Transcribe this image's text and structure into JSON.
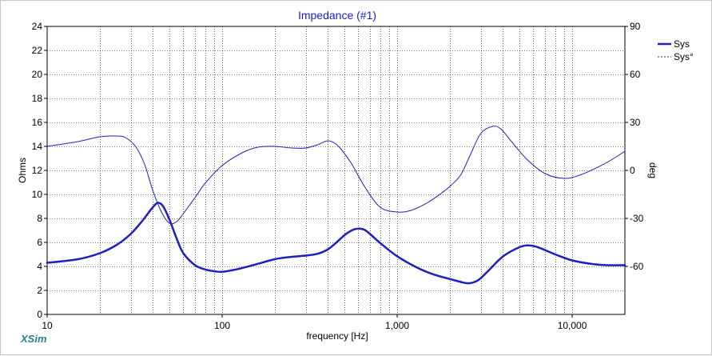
{
  "chart_data": {
    "type": "line",
    "title": "Impedance (#1)",
    "xlabel": "frequency [Hz]",
    "ylabel": "Ohms",
    "y2label": "deg",
    "xscale": "log",
    "xlim": [
      10,
      20000
    ],
    "ylim": [
      0,
      24
    ],
    "y2lim": [
      -90,
      90
    ],
    "grid": true,
    "legend_position": "top-right",
    "x_ticks": [
      10,
      100,
      1000,
      10000
    ],
    "x_tick_labels": [
      "10",
      "100",
      "1,000",
      "10,000"
    ],
    "y_ticks": [
      0,
      2,
      4,
      6,
      8,
      10,
      12,
      14,
      16,
      18,
      20,
      22,
      24
    ],
    "y2_ticks": [
      -60,
      -30,
      0,
      30,
      60,
      90
    ],
    "series": [
      {
        "name": "Sys",
        "axis": "left",
        "style": "solid",
        "color": "#1f1fbf",
        "x": [
          10,
          15,
          20,
          25,
          30,
          35,
          40,
          43,
          46,
          50,
          55,
          60,
          70,
          80,
          90,
          100,
          120,
          150,
          200,
          250,
          300,
          350,
          400,
          450,
          500,
          550,
          600,
          650,
          700,
          800,
          1000,
          1300,
          1600,
          2000,
          2400,
          2600,
          2900,
          3300,
          4000,
          5000,
          5700,
          6500,
          8000,
          10000,
          13000,
          16000,
          20000
        ],
        "values": [
          4.3,
          4.6,
          5.1,
          5.8,
          6.7,
          7.8,
          8.9,
          9.3,
          9.0,
          7.9,
          6.3,
          5.1,
          4.1,
          3.75,
          3.6,
          3.55,
          3.75,
          4.1,
          4.6,
          4.8,
          4.9,
          5.05,
          5.4,
          6.0,
          6.6,
          7.0,
          7.15,
          7.05,
          6.7,
          5.95,
          4.85,
          3.9,
          3.35,
          2.95,
          2.65,
          2.6,
          2.85,
          3.6,
          4.8,
          5.6,
          5.75,
          5.55,
          5.0,
          4.5,
          4.2,
          4.1,
          4.1
        ]
      },
      {
        "name": "Sys°",
        "axis": "right",
        "style": "dashed",
        "color": "#1f1fbf",
        "x": [
          10,
          15,
          20,
          25,
          28,
          32,
          36,
          40,
          45,
          50,
          55,
          60,
          70,
          80,
          100,
          130,
          160,
          200,
          250,
          300,
          350,
          400,
          440,
          480,
          550,
          650,
          800,
          1000,
          1200,
          1500,
          1800,
          2000,
          2300,
          2600,
          3000,
          3500,
          3900,
          4500,
          5500,
          7000,
          9000,
          11000,
          14000,
          17000,
          20000
        ],
        "values": [
          15,
          18,
          21,
          21.5,
          20.5,
          15,
          4,
          -12,
          -26,
          -33,
          -32,
          -27,
          -17,
          -8,
          3,
          11,
          14.5,
          15,
          14,
          14,
          16,
          18.5,
          17,
          13,
          4,
          -10,
          -23,
          -26,
          -25,
          -20,
          -14,
          -10,
          -3,
          9,
          23,
          27.5,
          26,
          18,
          7,
          -2,
          -5,
          -3,
          2,
          7,
          12
        ]
      }
    ],
    "brand": "XSim"
  }
}
